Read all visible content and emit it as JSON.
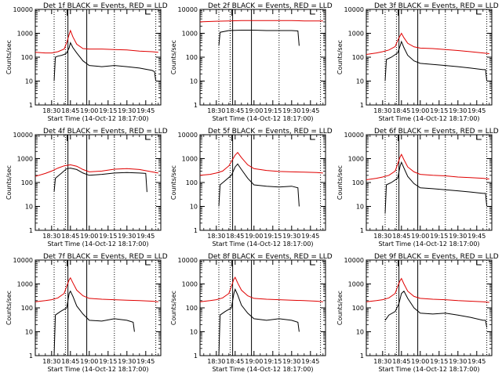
{
  "figure": {
    "ylabel": "Counts/sec",
    "xlabel": "Start Time (14-Oct-12 18:17:00)",
    "xticks": [
      "18:30",
      "18:45",
      "19:00",
      "19:15",
      "19:30",
      "19:45"
    ],
    "yticks": [
      "1",
      "10",
      "100",
      "1000",
      "10000"
    ]
  },
  "colors": {
    "events": "#000000",
    "lld": "#e00000"
  },
  "chart_data": [
    {
      "type": "line",
      "title": "Det 1f BLACK = Events, RED = LLD",
      "xlabel": "Start Time (14-Oct-12 18:17:00)",
      "ylabel": "Counts/sec",
      "yscale": "log",
      "ylim": [
        1,
        10000
      ],
      "xticks": [
        "18:30",
        "18:45",
        "19:00",
        "19:15",
        "19:30",
        "19:45"
      ],
      "vlines_dotted": [
        "18:32",
        "18:41",
        "19:20",
        "19:53"
      ],
      "vlines_solid": [
        "18:43",
        "18:58"
      ],
      "series": [
        {
          "name": "Events",
          "color": "black",
          "x": [
            "18:32",
            "18:33",
            "18:35",
            "18:38",
            "18:40",
            "18:42",
            "18:44",
            "18:45",
            "18:47",
            "18:50",
            "18:55",
            "19:00",
            "19:10",
            "19:20",
            "19:30",
            "19:40",
            "19:50",
            "19:52",
            "19:53"
          ],
          "values": [
            10,
            100,
            110,
            120,
            130,
            150,
            250,
            400,
            250,
            150,
            70,
            45,
            40,
            45,
            40,
            35,
            28,
            25,
            10
          ]
        },
        {
          "name": "LLD",
          "color": "red",
          "x": [
            "18:17",
            "18:25",
            "18:30",
            "18:35",
            "18:40",
            "18:42",
            "18:44",
            "18:45",
            "18:47",
            "18:50",
            "18:55",
            "19:00",
            "19:10",
            "19:20",
            "19:30",
            "19:40",
            "19:50",
            "19:55"
          ],
          "values": [
            160,
            150,
            150,
            170,
            220,
            400,
            900,
            1300,
            700,
            350,
            230,
            220,
            220,
            210,
            200,
            180,
            170,
            160
          ]
        }
      ]
    },
    {
      "type": "line",
      "title": "Det 2f BLACK = Events, RED = LLD",
      "xlabel": "Start Time (14-Oct-12 18:17:00)",
      "ylabel": "Counts/sec",
      "yscale": "log",
      "ylim": [
        1,
        10000
      ],
      "xticks": [
        "18:30",
        "18:45",
        "19:00",
        "19:15",
        "19:30",
        "19:45"
      ],
      "vlines_dotted": [
        "18:32",
        "18:41",
        "19:20",
        "19:53"
      ],
      "vlines_solid": [
        "18:43",
        "18:58"
      ],
      "series": [
        {
          "name": "Events",
          "color": "black",
          "x": [
            "18:32",
            "18:33",
            "18:40",
            "18:50",
            "19:00",
            "19:10",
            "19:20",
            "19:30",
            "19:35",
            "19:36"
          ],
          "values": [
            300,
            1100,
            1300,
            1350,
            1350,
            1300,
            1300,
            1300,
            1250,
            300
          ]
        },
        {
          "name": "LLD",
          "color": "red",
          "x": [
            "18:17",
            "18:30",
            "18:40",
            "18:50",
            "19:00",
            "19:10",
            "19:20",
            "19:30",
            "19:40",
            "19:50",
            "19:55"
          ],
          "values": [
            3000,
            3200,
            3300,
            3400,
            3400,
            3400,
            3400,
            3400,
            3300,
            3300,
            3300
          ]
        }
      ]
    },
    {
      "type": "line",
      "title": "Det 3f BLACK = Events, RED = LLD",
      "xlabel": "Start Time (14-Oct-12 18:17:00)",
      "ylabel": "Counts/sec",
      "yscale": "log",
      "ylim": [
        1,
        10000
      ],
      "xticks": [
        "18:30",
        "18:45",
        "19:00",
        "19:15",
        "19:30",
        "19:45"
      ],
      "vlines_dotted": [
        "18:32",
        "18:41",
        "19:20",
        "19:53"
      ],
      "vlines_solid": [
        "18:43",
        "18:58"
      ],
      "series": [
        {
          "name": "Events",
          "color": "black",
          "x": [
            "18:32",
            "18:33",
            "18:37",
            "18:42",
            "18:44",
            "18:45",
            "18:47",
            "18:50",
            "18:55",
            "19:00",
            "19:10",
            "19:20",
            "19:30",
            "19:40",
            "19:50",
            "19:52",
            "19:53"
          ],
          "values": [
            10,
            80,
            100,
            150,
            300,
            450,
            250,
            120,
            70,
            55,
            50,
            45,
            40,
            35,
            30,
            30,
            10
          ]
        },
        {
          "name": "LLD",
          "color": "red",
          "x": [
            "18:17",
            "18:25",
            "18:30",
            "18:35",
            "18:40",
            "18:42",
            "18:44",
            "18:45",
            "18:47",
            "18:50",
            "18:55",
            "19:00",
            "19:10",
            "19:20",
            "19:30",
            "19:40",
            "19:50",
            "19:55"
          ],
          "values": [
            130,
            150,
            170,
            200,
            280,
            500,
            800,
            1000,
            650,
            380,
            270,
            240,
            230,
            210,
            190,
            170,
            150,
            140
          ]
        }
      ]
    },
    {
      "type": "line",
      "title": "Det 4f BLACK = Events, RED = LLD",
      "xlabel": "Start Time (14-Oct-12 18:17:00)",
      "ylabel": "Counts/sec",
      "yscale": "log",
      "ylim": [
        1,
        10000
      ],
      "xticks": [
        "18:30",
        "18:45",
        "19:00",
        "19:15",
        "19:30",
        "19:45"
      ],
      "vlines_dotted": [
        "18:32",
        "18:41",
        "19:20",
        "19:53"
      ],
      "vlines_solid": [
        "18:43",
        "18:58"
      ],
      "series": [
        {
          "name": "Events",
          "color": "black",
          "x": [
            "18:32",
            "18:33",
            "18:38",
            "18:42",
            "18:45",
            "18:50",
            "18:55",
            "19:00",
            "19:10",
            "19:20",
            "19:30",
            "19:40",
            "19:45",
            "19:46"
          ],
          "values": [
            40,
            150,
            250,
            380,
            400,
            350,
            250,
            200,
            220,
            250,
            260,
            250,
            240,
            40
          ]
        },
        {
          "name": "LLD",
          "color": "red",
          "x": [
            "18:17",
            "18:25",
            "18:30",
            "18:35",
            "18:40",
            "18:45",
            "18:50",
            "18:55",
            "19:00",
            "19:10",
            "19:20",
            "19:30",
            "19:40",
            "19:50",
            "19:55"
          ],
          "values": [
            180,
            240,
            300,
            400,
            500,
            550,
            480,
            350,
            280,
            300,
            360,
            380,
            350,
            280,
            250
          ]
        }
      ]
    },
    {
      "type": "line",
      "title": "Det 5f BLACK = Events, RED = LLD",
      "xlabel": "Start Time (14-Oct-12 18:17:00)",
      "ylabel": "Counts/sec",
      "yscale": "log",
      "ylim": [
        1,
        10000
      ],
      "xticks": [
        "18:30",
        "18:45",
        "19:00",
        "19:15",
        "19:30",
        "19:45"
      ],
      "vlines_dotted": [
        "18:32",
        "18:41",
        "19:20",
        "19:53"
      ],
      "vlines_solid": [
        "18:43",
        "18:58"
      ],
      "series": [
        {
          "name": "Events",
          "color": "black",
          "x": [
            "18:32",
            "18:33",
            "18:37",
            "18:42",
            "18:45",
            "18:47",
            "18:50",
            "18:55",
            "19:00",
            "19:10",
            "19:20",
            "19:30",
            "19:35",
            "19:36"
          ],
          "values": [
            10,
            80,
            120,
            200,
            450,
            600,
            350,
            150,
            80,
            70,
            65,
            70,
            60,
            10
          ]
        },
        {
          "name": "LLD",
          "color": "red",
          "x": [
            "18:17",
            "18:25",
            "18:30",
            "18:35",
            "18:40",
            "18:45",
            "18:47",
            "18:50",
            "18:55",
            "19:00",
            "19:10",
            "19:20",
            "19:30",
            "19:40",
            "19:50",
            "19:55"
          ],
          "values": [
            200,
            220,
            250,
            300,
            500,
            1400,
            1800,
            1100,
            550,
            380,
            320,
            290,
            280,
            270,
            260,
            250
          ]
        }
      ]
    },
    {
      "type": "line",
      "title": "Det 6f BLACK = Events, RED = LLD",
      "xlabel": "Start Time (14-Oct-12 18:17:00)",
      "ylabel": "Counts/sec",
      "yscale": "log",
      "ylim": [
        1,
        10000
      ],
      "xticks": [
        "18:30",
        "18:45",
        "19:00",
        "19:15",
        "19:30",
        "19:45"
      ],
      "vlines_dotted": [
        "18:32",
        "18:41",
        "19:20",
        "19:53"
      ],
      "vlines_solid": [
        "18:43",
        "18:58"
      ],
      "series": [
        {
          "name": "Events",
          "color": "black",
          "x": [
            "18:32",
            "18:33",
            "18:37",
            "18:42",
            "18:44",
            "18:45",
            "18:47",
            "18:50",
            "18:55",
            "19:00",
            "19:10",
            "19:20",
            "19:30",
            "19:40",
            "19:50",
            "19:52",
            "19:53"
          ],
          "values": [
            5,
            80,
            100,
            150,
            500,
            700,
            400,
            180,
            90,
            60,
            55,
            50,
            45,
            40,
            35,
            35,
            10
          ]
        },
        {
          "name": "LLD",
          "color": "red",
          "x": [
            "18:17",
            "18:25",
            "18:30",
            "18:35",
            "18:40",
            "18:42",
            "18:44",
            "18:45",
            "18:47",
            "18:50",
            "18:55",
            "19:00",
            "19:10",
            "19:20",
            "19:30",
            "19:40",
            "19:50",
            "19:55"
          ],
          "values": [
            130,
            150,
            170,
            200,
            300,
            600,
            1200,
            1500,
            900,
            450,
            280,
            220,
            200,
            190,
            170,
            160,
            150,
            140
          ]
        }
      ]
    },
    {
      "type": "line",
      "title": "Det 7f BLACK = Events, RED = LLD",
      "xlabel": "Start Time (14-Oct-12 18:17:00)",
      "ylabel": "Counts/sec",
      "yscale": "log",
      "ylim": [
        1,
        10000
      ],
      "xticks": [
        "18:30",
        "18:45",
        "19:00",
        "19:15",
        "19:30",
        "19:45"
      ],
      "vlines_dotted": [
        "18:32",
        "18:41",
        "19:20",
        "19:53"
      ],
      "vlines_solid": [
        "18:43",
        "18:58"
      ],
      "series": [
        {
          "name": "Events",
          "color": "black",
          "x": [
            "18:32",
            "18:33",
            "18:37",
            "18:42",
            "18:44",
            "18:45",
            "18:47",
            "18:50",
            "18:55",
            "19:00",
            "19:10",
            "19:20",
            "19:30",
            "19:35",
            "19:36"
          ],
          "values": [
            1,
            50,
            70,
            100,
            400,
            500,
            300,
            120,
            55,
            30,
            28,
            35,
            30,
            25,
            10
          ]
        },
        {
          "name": "LLD",
          "color": "red",
          "x": [
            "18:17",
            "18:25",
            "18:30",
            "18:35",
            "18:40",
            "18:42",
            "18:44",
            "18:45",
            "18:47",
            "18:50",
            "18:55",
            "19:00",
            "19:10",
            "19:20",
            "19:30",
            "19:40",
            "19:50",
            "19:55"
          ],
          "values": [
            180,
            200,
            220,
            260,
            400,
            800,
            1500,
            1800,
            1100,
            550,
            320,
            250,
            230,
            220,
            210,
            200,
            190,
            180
          ]
        }
      ]
    },
    {
      "type": "line",
      "title": "Det 8f BLACK = Events, RED = LLD",
      "xlabel": "Start Time (14-Oct-12 18:17:00)",
      "ylabel": "Counts/sec",
      "yscale": "log",
      "ylim": [
        1,
        10000
      ],
      "xticks": [
        "18:30",
        "18:45",
        "19:00",
        "19:15",
        "19:30",
        "19:45"
      ],
      "vlines_dotted": [
        "18:32",
        "18:41",
        "19:20",
        "19:53"
      ],
      "vlines_solid": [
        "18:43",
        "18:58"
      ],
      "series": [
        {
          "name": "Events",
          "color": "black",
          "x": [
            "18:32",
            "18:33",
            "18:37",
            "18:42",
            "18:44",
            "18:45",
            "18:47",
            "18:50",
            "18:55",
            "19:00",
            "19:10",
            "19:20",
            "19:30",
            "19:35",
            "19:36"
          ],
          "values": [
            1,
            50,
            70,
            100,
            400,
            600,
            350,
            130,
            60,
            35,
            30,
            35,
            30,
            25,
            10
          ]
        },
        {
          "name": "LLD",
          "color": "red",
          "x": [
            "18:17",
            "18:25",
            "18:30",
            "18:35",
            "18:40",
            "18:42",
            "18:44",
            "18:45",
            "18:47",
            "18:50",
            "18:55",
            "19:00",
            "19:10",
            "19:20",
            "19:30",
            "19:40",
            "19:50",
            "19:55"
          ],
          "values": [
            180,
            200,
            220,
            260,
            400,
            800,
            1600,
            1900,
            1100,
            550,
            320,
            250,
            230,
            220,
            210,
            200,
            190,
            180
          ]
        }
      ]
    },
    {
      "type": "line",
      "title": "Det 9f BLACK = Events, RED = LLD",
      "xlabel": "Start Time (14-Oct-12 18:17:00)",
      "ylabel": "Counts/sec",
      "yscale": "log",
      "ylim": [
        1,
        10000
      ],
      "xticks": [
        "18:30",
        "18:45",
        "19:00",
        "19:15",
        "19:30",
        "19:45"
      ],
      "vlines_dotted": [
        "18:32",
        "18:41",
        "19:20",
        "19:53"
      ],
      "vlines_solid": [
        "18:43",
        "18:58"
      ],
      "series": [
        {
          "name": "Events",
          "color": "black",
          "x": [
            "18:32",
            "18:35",
            "18:40",
            "18:43",
            "18:45",
            "18:47",
            "18:50",
            "18:55",
            "19:00",
            "19:10",
            "19:20",
            "19:30",
            "19:40",
            "19:50",
            "19:52",
            "19:53"
          ],
          "values": [
            30,
            50,
            70,
            150,
            400,
            500,
            250,
            100,
            60,
            55,
            60,
            50,
            40,
            30,
            30,
            15
          ]
        },
        {
          "name": "LLD",
          "color": "red",
          "x": [
            "18:17",
            "18:25",
            "18:30",
            "18:35",
            "18:40",
            "18:42",
            "18:44",
            "18:45",
            "18:47",
            "18:50",
            "18:55",
            "19:00",
            "19:10",
            "19:20",
            "19:30",
            "19:40",
            "19:50",
            "19:55"
          ],
          "values": [
            180,
            200,
            220,
            260,
            400,
            800,
            1400,
            1700,
            1000,
            500,
            300,
            250,
            230,
            220,
            200,
            190,
            180,
            170
          ]
        }
      ]
    }
  ]
}
